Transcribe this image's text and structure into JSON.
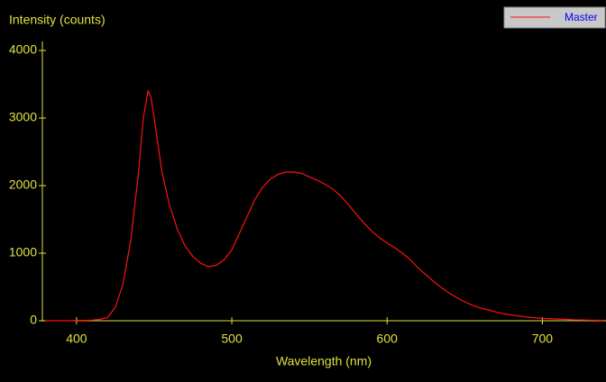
{
  "chart_data": {
    "type": "line",
    "y_label": "Intensity (counts)",
    "x_label": "Wavelength (nm)",
    "x": [
      380,
      385,
      390,
      395,
      400,
      405,
      410,
      415,
      420,
      425,
      430,
      435,
      440,
      443,
      446,
      448,
      450,
      455,
      460,
      465,
      470,
      475,
      480,
      485,
      490,
      495,
      500,
      505,
      510,
      515,
      520,
      525,
      530,
      535,
      540,
      545,
      550,
      555,
      560,
      565,
      570,
      575,
      580,
      585,
      590,
      595,
      600,
      605,
      610,
      615,
      620,
      625,
      630,
      635,
      640,
      645,
      650,
      655,
      660,
      665,
      670,
      675,
      680,
      685,
      690,
      695,
      700,
      710,
      720,
      730,
      740
    ],
    "series": [
      {
        "name": "Master",
        "color": "#ff1010",
        "values": [
          0,
          0,
          0,
          0,
          5,
          5,
          10,
          20,
          50,
          200,
          550,
          1200,
          2200,
          3000,
          3400,
          3300,
          3000,
          2200,
          1700,
          1350,
          1100,
          950,
          850,
          800,
          820,
          900,
          1050,
          1300,
          1550,
          1800,
          1980,
          2100,
          2170,
          2200,
          2200,
          2180,
          2130,
          2080,
          2020,
          1950,
          1850,
          1720,
          1580,
          1450,
          1330,
          1230,
          1150,
          1080,
          1000,
          900,
          780,
          680,
          580,
          490,
          410,
          340,
          280,
          230,
          190,
          160,
          130,
          105,
          85,
          70,
          55,
          45,
          35,
          25,
          15,
          10,
          5
        ]
      }
    ],
    "xlim": [
      378,
      741
    ],
    "xticks": [
      400,
      500,
      600,
      700
    ],
    "ylim": [
      0,
      4000
    ],
    "yticks": [
      0,
      1000,
      2000,
      3000,
      4000
    ],
    "legend": "top-right"
  }
}
